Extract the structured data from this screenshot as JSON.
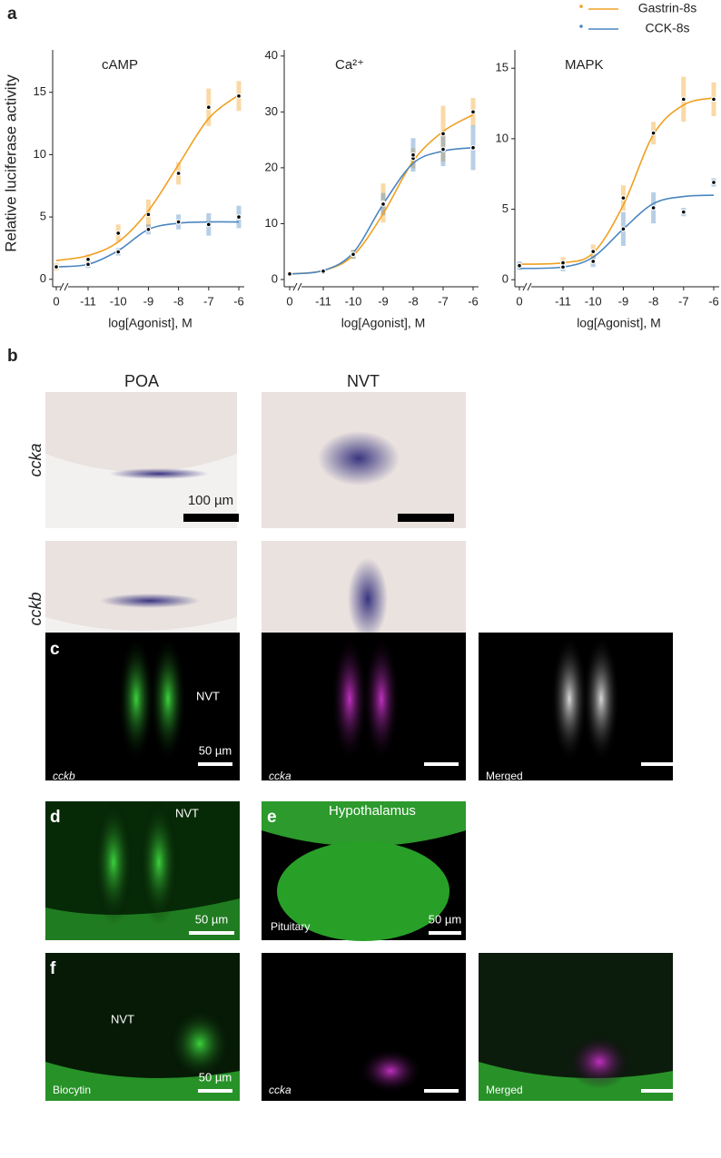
{
  "figure": {
    "panel_labels": [
      "a",
      "b",
      "c",
      "d",
      "e",
      "f"
    ]
  },
  "chart_data": [
    {
      "type": "line",
      "title": "cAMP",
      "y_label": "Relative luciferase activity",
      "x_label": "log[Agonist], M",
      "categories": [
        "0",
        "-11",
        "-10",
        "-9",
        "-8",
        "-7",
        "-6"
      ],
      "ylim": [
        -0.6,
        18.4
      ],
      "yticks": [
        0,
        5,
        10,
        15
      ],
      "series": [
        {
          "name": "Gastrin-8s",
          "color": "#f0a020",
          "values": [
            1.0,
            1.6,
            3.7,
            5.2,
            8.5,
            13.8,
            14.7
          ],
          "errors": [
            0.3,
            0.4,
            0.7,
            1.2,
            0.9,
            1.5,
            1.2
          ],
          "fit": [
            1.5,
            1.9,
            3.0,
            5.5,
            9.2,
            12.9,
            14.8
          ]
        },
        {
          "name": "CCK-8s",
          "color": "#4a86c0",
          "values": [
            1.0,
            1.2,
            2.2,
            4.0,
            4.6,
            4.4,
            5.0
          ],
          "errors": [
            0.2,
            0.3,
            0.3,
            0.4,
            0.6,
            0.9,
            0.9
          ],
          "fit": [
            1.0,
            1.2,
            2.3,
            4.0,
            4.5,
            4.6,
            4.6
          ]
        }
      ]
    },
    {
      "type": "line",
      "title": "Ca²⁺",
      "x_label": "log[Agonist], M",
      "categories": [
        "0",
        "-11",
        "-10",
        "-9",
        "-8",
        "-7",
        "-6"
      ],
      "ylim": [
        -1.3,
        41.1
      ],
      "yticks": [
        0,
        10,
        20,
        30,
        40
      ],
      "series": [
        {
          "color": "#f0a020",
          "values": [
            1.0,
            1.3,
            4.5,
            13.7,
            21.7,
            26.1,
            30.0
          ],
          "errors": [
            0.2,
            0.3,
            0.8,
            3.5,
            1.8,
            5.0,
            2.5
          ],
          "fit": [
            1.0,
            1.6,
            4.3,
            11.8,
            21.2,
            26.5,
            29.5
          ]
        },
        {
          "color": "#4a86c0",
          "values": [
            1.0,
            1.5,
            4.5,
            13.5,
            22.3,
            23.3,
            23.6
          ],
          "errors": [
            0.2,
            0.3,
            0.8,
            2.0,
            3.0,
            3.0,
            4.0
          ],
          "fit": [
            1.0,
            1.6,
            4.8,
            13.5,
            20.8,
            23.0,
            23.6
          ]
        }
      ]
    },
    {
      "type": "line",
      "title": "MAPK",
      "x_label": "log[Agonist], M",
      "categories": [
        "0",
        "-11",
        "-10",
        "-9",
        "-8",
        "-7",
        "-6"
      ],
      "ylim": [
        -0.5,
        16.3
      ],
      "yticks": [
        0,
        5,
        10,
        15
      ],
      "series": [
        {
          "color": "#f0a020",
          "values": [
            1.0,
            1.2,
            2.0,
            5.8,
            10.4,
            12.8,
            12.8
          ],
          "errors": [
            0.2,
            0.4,
            0.5,
            0.9,
            0.8,
            1.6,
            1.2
          ],
          "fit": [
            1.1,
            1.2,
            1.9,
            5.3,
            10.3,
            12.4,
            12.9
          ]
        },
        {
          "color": "#4a86c0",
          "values": [
            1.0,
            0.9,
            1.3,
            3.6,
            5.1,
            4.8,
            6.9
          ],
          "errors": [
            0.3,
            0.3,
            0.4,
            1.2,
            1.1,
            0.3,
            0.3
          ],
          "fit": [
            0.8,
            0.9,
            1.6,
            3.6,
            5.4,
            5.9,
            6.0
          ]
        }
      ]
    }
  ],
  "panel_b": {
    "columns": [
      "POA",
      "NVT"
    ],
    "rows": [
      "ccka",
      "cckb"
    ],
    "scale_bar": "100 µm"
  },
  "panel_c": {
    "region": "NVT",
    "channels": [
      "cckb",
      "ccka",
      "Merged"
    ],
    "scale_bar": "50 µm"
  },
  "panel_d": {
    "region": "NVT",
    "scale_bar": "50 µm"
  },
  "panel_e": {
    "top": "Hypothalamus",
    "bottom": "Pituitary",
    "scale_bar": "50 µm"
  },
  "panel_f": {
    "region": "NVT",
    "channels": [
      "Biocytin",
      "ccka",
      "Merged"
    ],
    "scale_bar": "50 µm"
  }
}
